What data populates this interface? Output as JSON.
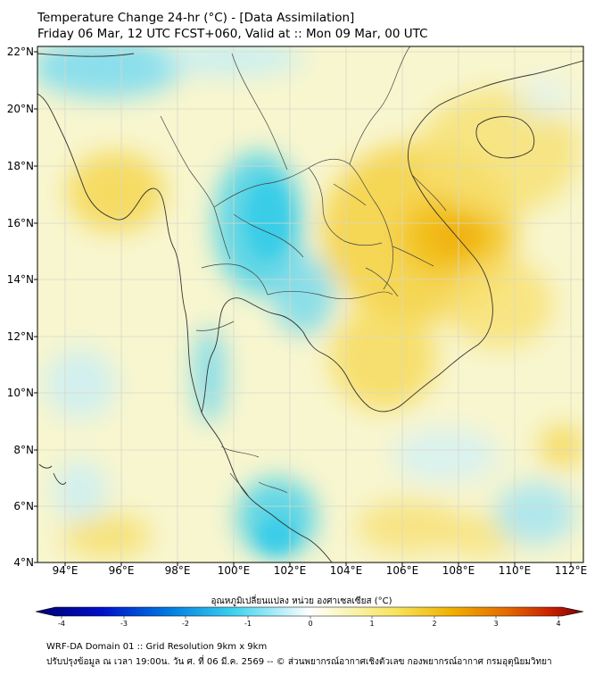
{
  "title_line1": "Temperature Change 24-hr (°C) - [Data Assimilation]",
  "title_line2": "Friday 06 Mar, 12 UTC FCST+060, Valid at :: Mon 09 Mar, 00 UTC",
  "lat_labels": [
    "22°N",
    "20°N",
    "18°N",
    "16°N",
    "14°N",
    "12°N",
    "10°N",
    "8°N",
    "6°N",
    "4°N"
  ],
  "lon_labels": [
    "94°E",
    "96°E",
    "98°E",
    "100°E",
    "102°E",
    "104°E",
    "106°E",
    "108°E",
    "110°E",
    "112°E"
  ],
  "colorbar": {
    "title": "อุณหภูมิเปลี่ยนแปลง หน่วย องศาเซลเซียส (°C)",
    "ticks": [
      "-4",
      "-3",
      "-2",
      "-1",
      "0",
      "1",
      "2",
      "3",
      "4"
    ]
  },
  "footer_line1": "WRF-DA Domain 01 :: Grid Resolution 9km x 9km",
  "footer_line2": "ปรับปรุงข้อมูล ณ เวลา 19:00น. วัน ศ. ที่ 06 มี.ค. 2569 -- © ส่วนพยากรณ์อากาศเชิงตัวเลข กองพยากรณ์อากาศ กรมอุตุนิยมวิทยา",
  "colors": {
    "cold": "#3fd0ea",
    "neutral": "#f8f8dc",
    "warm": "#f5cf2a",
    "hot": "#f0a500"
  }
}
